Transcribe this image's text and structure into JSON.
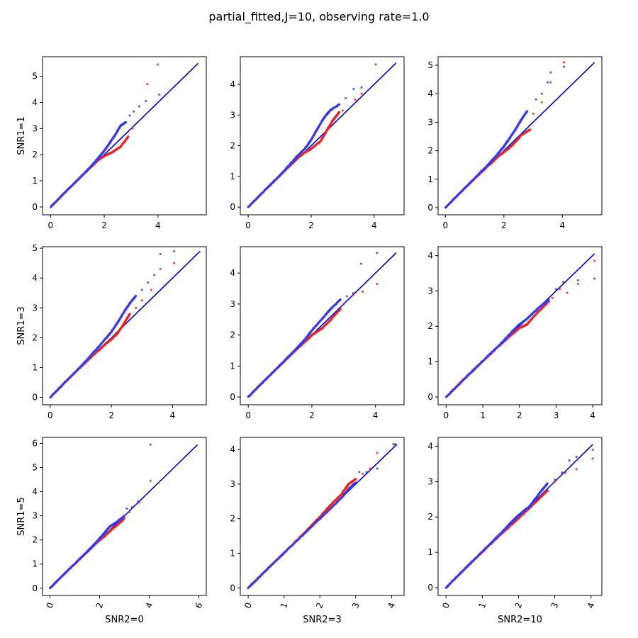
{
  "title": "partial_fitted,J=10, observing rate=1.0",
  "colors": {
    "reference": "#0000cc",
    "series_red": "#ee2222",
    "series_blue": "#3a3ae8"
  },
  "chart_data": {
    "type": "scatter",
    "title": "partial_fitted,J=10, observing rate=1.0",
    "grid": false,
    "legend": "none",
    "reference_line": "y = x",
    "row_labels": [
      "SNR1=1",
      "SNR1=3",
      "SNR1=5"
    ],
    "col_labels": [
      "SNR2=0",
      "SNR2=3",
      "SNR2=10"
    ],
    "series_names": [],
    "panels": [
      {
        "row": 0,
        "col": 0,
        "ylabel": "SNR1=1",
        "xlabel": "",
        "xlim": [
          -0.3,
          5.8
        ],
        "ylim": [
          -0.3,
          5.75
        ],
        "xticks": [
          0,
          2,
          4
        ],
        "yticks": [
          0,
          1,
          2,
          3,
          4,
          5
        ],
        "xtick_rotation": 0,
        "line_max": 5.5,
        "red_curve": [
          [
            0,
            0
          ],
          [
            0.5,
            0.52
          ],
          [
            1,
            1.02
          ],
          [
            1.5,
            1.52
          ],
          [
            1.8,
            1.82
          ],
          [
            2.0,
            1.95
          ],
          [
            2.3,
            2.1
          ],
          [
            2.6,
            2.3
          ],
          [
            2.9,
            2.7
          ]
        ],
        "blue_curve": [
          [
            0,
            0
          ],
          [
            0.5,
            0.52
          ],
          [
            1,
            1.03
          ],
          [
            1.5,
            1.55
          ],
          [
            1.8,
            1.9
          ],
          [
            2.0,
            2.15
          ],
          [
            2.2,
            2.45
          ],
          [
            2.4,
            2.75
          ],
          [
            2.6,
            3.1
          ],
          [
            2.8,
            3.25
          ]
        ],
        "red_tail": [
          [
            3.05,
            3.0
          ],
          [
            3.6,
            4.7
          ],
          [
            4.0,
            5.45
          ]
        ],
        "blue_tail": [
          [
            2.95,
            3.5
          ],
          [
            3.1,
            3.65
          ],
          [
            3.3,
            3.85
          ],
          [
            3.55,
            4.05
          ],
          [
            4.05,
            4.3
          ]
        ]
      },
      {
        "row": 0,
        "col": 1,
        "ylabel": "",
        "xlabel": "",
        "xlim": [
          -0.25,
          4.95
        ],
        "ylim": [
          -0.25,
          4.9
        ],
        "xticks": [
          0,
          2,
          4
        ],
        "yticks": [
          0,
          1,
          2,
          3,
          4
        ],
        "xtick_rotation": 0,
        "line_max": 4.7,
        "red_curve": [
          [
            0,
            0
          ],
          [
            0.5,
            0.52
          ],
          [
            1,
            1.02
          ],
          [
            1.5,
            1.55
          ],
          [
            1.8,
            1.78
          ],
          [
            2.0,
            1.9
          ],
          [
            2.3,
            2.15
          ],
          [
            2.5,
            2.5
          ],
          [
            2.7,
            2.85
          ],
          [
            2.9,
            3.1
          ]
        ],
        "blue_curve": [
          [
            0,
            0
          ],
          [
            0.5,
            0.52
          ],
          [
            1,
            1.03
          ],
          [
            1.5,
            1.6
          ],
          [
            1.8,
            1.9
          ],
          [
            2.0,
            2.2
          ],
          [
            2.2,
            2.55
          ],
          [
            2.4,
            2.9
          ],
          [
            2.6,
            3.15
          ],
          [
            2.9,
            3.35
          ]
        ],
        "red_tail": [
          [
            3.0,
            3.15
          ],
          [
            3.4,
            3.5
          ],
          [
            3.6,
            3.7
          ]
        ],
        "blue_tail": [
          [
            3.1,
            3.55
          ],
          [
            3.35,
            3.85
          ],
          [
            3.6,
            3.9
          ],
          [
            4.05,
            4.65
          ]
        ]
      },
      {
        "row": 0,
        "col": 2,
        "ylabel": "",
        "xlabel": "",
        "xlim": [
          -0.25,
          5.35
        ],
        "ylim": [
          -0.25,
          5.3
        ],
        "xticks": [
          0,
          2,
          4
        ],
        "yticks": [
          0,
          1,
          2,
          3,
          4,
          5
        ],
        "xtick_rotation": 0,
        "line_max": 5.1,
        "red_curve": [
          [
            0,
            0
          ],
          [
            0.5,
            0.52
          ],
          [
            1,
            1.02
          ],
          [
            1.5,
            1.5
          ],
          [
            1.8,
            1.8
          ],
          [
            2.0,
            1.95
          ],
          [
            2.3,
            2.2
          ],
          [
            2.6,
            2.55
          ],
          [
            2.9,
            2.75
          ]
        ],
        "blue_curve": [
          [
            0,
            0
          ],
          [
            0.5,
            0.52
          ],
          [
            1,
            1.04
          ],
          [
            1.5,
            1.55
          ],
          [
            1.8,
            1.9
          ],
          [
            2.0,
            2.15
          ],
          [
            2.2,
            2.45
          ],
          [
            2.4,
            2.75
          ],
          [
            2.6,
            3.1
          ],
          [
            2.8,
            3.4
          ]
        ],
        "red_tail": [
          [
            3.0,
            3.3
          ],
          [
            3.3,
            3.7
          ],
          [
            3.6,
            4.4
          ],
          [
            4.05,
            5.1
          ]
        ],
        "blue_tail": [
          [
            3.1,
            3.8
          ],
          [
            3.3,
            4.0
          ],
          [
            3.5,
            4.4
          ],
          [
            3.6,
            4.75
          ],
          [
            4.05,
            4.95
          ]
        ]
      },
      {
        "row": 1,
        "col": 0,
        "ylabel": "SNR1=3",
        "xlabel": "",
        "xlim": [
          -0.25,
          5.1
        ],
        "ylim": [
          -0.25,
          5.05
        ],
        "xticks": [
          0,
          2,
          4
        ],
        "yticks": [
          0,
          1,
          2,
          3,
          4,
          5
        ],
        "xtick_rotation": 0,
        "line_max": 4.9,
        "red_curve": [
          [
            0,
            0
          ],
          [
            0.5,
            0.52
          ],
          [
            1,
            1.02
          ],
          [
            1.5,
            1.5
          ],
          [
            1.8,
            1.78
          ],
          [
            2.0,
            1.95
          ],
          [
            2.2,
            2.15
          ],
          [
            2.4,
            2.45
          ],
          [
            2.6,
            2.8
          ]
        ],
        "blue_curve": [
          [
            0,
            0
          ],
          [
            0.5,
            0.52
          ],
          [
            1,
            1.04
          ],
          [
            1.5,
            1.6
          ],
          [
            1.8,
            1.95
          ],
          [
            2.0,
            2.2
          ],
          [
            2.2,
            2.5
          ],
          [
            2.4,
            2.85
          ],
          [
            2.6,
            3.15
          ],
          [
            2.8,
            3.4
          ]
        ],
        "red_tail": [
          [
            2.8,
            3.0
          ],
          [
            3.0,
            3.25
          ],
          [
            3.3,
            3.6
          ],
          [
            3.6,
            4.3
          ],
          [
            4.05,
            4.5
          ]
        ],
        "blue_tail": [
          [
            3.0,
            3.6
          ],
          [
            3.2,
            3.85
          ],
          [
            3.4,
            4.1
          ],
          [
            3.6,
            4.8
          ],
          [
            4.05,
            4.9
          ]
        ]
      },
      {
        "row": 1,
        "col": 1,
        "ylabel": "",
        "xlabel": "",
        "xlim": [
          -0.25,
          4.9
        ],
        "ylim": [
          -0.25,
          4.85
        ],
        "xticks": [
          0,
          2,
          4
        ],
        "yticks": [
          0,
          1,
          2,
          3,
          4
        ],
        "xtick_rotation": 0,
        "line_max": 4.65,
        "red_curve": [
          [
            0,
            0
          ],
          [
            0.5,
            0.52
          ],
          [
            1,
            1.02
          ],
          [
            1.5,
            1.52
          ],
          [
            1.8,
            1.8
          ],
          [
            2.0,
            2.0
          ],
          [
            2.3,
            2.2
          ],
          [
            2.6,
            2.5
          ],
          [
            2.9,
            2.85
          ]
        ],
        "blue_curve": [
          [
            0,
            0
          ],
          [
            0.5,
            0.52
          ],
          [
            1,
            1.03
          ],
          [
            1.5,
            1.55
          ],
          [
            1.8,
            1.88
          ],
          [
            2.0,
            2.15
          ],
          [
            2.3,
            2.5
          ],
          [
            2.6,
            2.85
          ],
          [
            2.9,
            3.15
          ]
        ],
        "red_tail": [
          [
            3.0,
            3.0
          ],
          [
            3.3,
            3.35
          ],
          [
            3.6,
            3.4
          ],
          [
            4.05,
            3.65
          ]
        ],
        "blue_tail": [
          [
            3.1,
            3.25
          ],
          [
            3.3,
            3.3
          ],
          [
            3.55,
            4.3
          ],
          [
            4.05,
            4.65
          ]
        ]
      },
      {
        "row": 1,
        "col": 2,
        "ylabel": "",
        "xlabel": "",
        "xlim": [
          -0.22,
          4.25
        ],
        "ylim": [
          -0.22,
          4.25
        ],
        "xticks": [
          0,
          1,
          2,
          3,
          4
        ],
        "yticks": [
          0,
          1,
          2,
          3,
          4
        ],
        "xtick_rotation": 0,
        "line_max": 4.05,
        "red_curve": [
          [
            0,
            0
          ],
          [
            0.5,
            0.51
          ],
          [
            1,
            1.01
          ],
          [
            1.5,
            1.5
          ],
          [
            1.8,
            1.78
          ],
          [
            2.0,
            1.95
          ],
          [
            2.2,
            2.05
          ],
          [
            2.5,
            2.4
          ],
          [
            2.8,
            2.7
          ]
        ],
        "blue_curve": [
          [
            0,
            0
          ],
          [
            0.5,
            0.52
          ],
          [
            1,
            1.02
          ],
          [
            1.5,
            1.52
          ],
          [
            1.8,
            1.85
          ],
          [
            2.0,
            2.05
          ],
          [
            2.2,
            2.2
          ],
          [
            2.5,
            2.5
          ],
          [
            2.8,
            2.75
          ]
        ],
        "red_tail": [
          [
            2.9,
            2.8
          ],
          [
            3.1,
            3.05
          ],
          [
            3.3,
            2.95
          ],
          [
            3.6,
            3.2
          ],
          [
            4.05,
            3.85
          ]
        ],
        "blue_tail": [
          [
            3.0,
            3.05
          ],
          [
            3.2,
            3.25
          ],
          [
            3.6,
            3.3
          ],
          [
            4.05,
            3.35
          ]
        ]
      },
      {
        "row": 2,
        "col": 0,
        "ylabel": "SNR1=5",
        "xlabel": "SNR2=0",
        "xlim": [
          -0.3,
          6.3
        ],
        "ylim": [
          -0.3,
          6.25
        ],
        "xticks": [
          0,
          2,
          4,
          6
        ],
        "yticks": [
          0,
          1,
          2,
          3,
          4,
          5,
          6
        ],
        "xtick_rotation": -70,
        "line_max": 5.95,
        "red_curve": [
          [
            0,
            0
          ],
          [
            0.5,
            0.51
          ],
          [
            1,
            1.01
          ],
          [
            1.5,
            1.5
          ],
          [
            1.9,
            1.9
          ],
          [
            2.2,
            2.15
          ],
          [
            2.5,
            2.45
          ],
          [
            2.8,
            2.7
          ],
          [
            3.0,
            2.9
          ]
        ],
        "blue_curve": [
          [
            0,
            0
          ],
          [
            0.5,
            0.52
          ],
          [
            1,
            1.02
          ],
          [
            1.5,
            1.52
          ],
          [
            1.9,
            1.95
          ],
          [
            2.2,
            2.3
          ],
          [
            2.4,
            2.55
          ],
          [
            2.7,
            2.75
          ],
          [
            3.0,
            3.0
          ]
        ],
        "red_tail": [
          [
            3.2,
            3.15
          ],
          [
            3.6,
            3.55
          ],
          [
            4.05,
            4.45
          ]
        ],
        "blue_tail": [
          [
            3.1,
            3.3
          ],
          [
            3.3,
            3.35
          ],
          [
            3.55,
            3.6
          ],
          [
            4.05,
            5.95
          ]
        ]
      },
      {
        "row": 2,
        "col": 1,
        "ylabel": "",
        "xlabel": "SNR2=3",
        "xlim": [
          -0.22,
          4.35
        ],
        "ylim": [
          -0.22,
          4.35
        ],
        "xticks": [
          0,
          1,
          2,
          3,
          4
        ],
        "yticks": [
          0,
          1,
          2,
          3,
          4
        ],
        "xtick_rotation": -70,
        "line_max": 4.15,
        "red_curve": [
          [
            0,
            0
          ],
          [
            0.5,
            0.51
          ],
          [
            1,
            1.01
          ],
          [
            1.5,
            1.52
          ],
          [
            2.0,
            2.05
          ],
          [
            2.3,
            2.4
          ],
          [
            2.6,
            2.7
          ],
          [
            2.8,
            3.0
          ],
          [
            3.0,
            3.15
          ]
        ],
        "blue_curve": [
          [
            0,
            0
          ],
          [
            0.5,
            0.51
          ],
          [
            1,
            1.01
          ],
          [
            1.5,
            1.5
          ],
          [
            2.0,
            2.0
          ],
          [
            2.3,
            2.3
          ],
          [
            2.6,
            2.6
          ],
          [
            2.8,
            2.85
          ],
          [
            3.0,
            3.05
          ]
        ],
        "red_tail": [
          [
            3.2,
            3.3
          ],
          [
            3.4,
            3.45
          ],
          [
            3.6,
            3.9
          ],
          [
            4.05,
            4.15
          ]
        ],
        "blue_tail": [
          [
            3.1,
            3.35
          ],
          [
            3.3,
            3.35
          ],
          [
            3.6,
            3.45
          ],
          [
            4.1,
            4.15
          ]
        ]
      },
      {
        "row": 2,
        "col": 2,
        "ylabel": "",
        "xlabel": "SNR2=10",
        "xlim": [
          -0.22,
          4.3
        ],
        "ylim": [
          -0.22,
          4.25
        ],
        "xticks": [
          0,
          1,
          2,
          3,
          4
        ],
        "yticks": [
          0,
          1,
          2,
          3,
          4
        ],
        "xtick_rotation": -70,
        "line_max": 4.05,
        "red_curve": [
          [
            0,
            0
          ],
          [
            0.5,
            0.51
          ],
          [
            1,
            1.01
          ],
          [
            1.5,
            1.5
          ],
          [
            1.8,
            1.78
          ],
          [
            2.0,
            1.97
          ],
          [
            2.3,
            2.25
          ],
          [
            2.6,
            2.55
          ],
          [
            2.8,
            2.75
          ]
        ],
        "blue_curve": [
          [
            0,
            0
          ],
          [
            0.5,
            0.52
          ],
          [
            1,
            1.02
          ],
          [
            1.5,
            1.53
          ],
          [
            1.8,
            1.85
          ],
          [
            2.0,
            2.05
          ],
          [
            2.3,
            2.3
          ],
          [
            2.6,
            2.7
          ],
          [
            2.8,
            2.95
          ]
        ],
        "red_tail": [
          [
            3.0,
            3.0
          ],
          [
            3.3,
            3.25
          ],
          [
            3.6,
            3.35
          ],
          [
            4.05,
            3.65
          ]
        ],
        "blue_tail": [
          [
            3.0,
            3.05
          ],
          [
            3.2,
            3.25
          ],
          [
            3.4,
            3.6
          ],
          [
            3.6,
            3.7
          ],
          [
            4.05,
            3.9
          ]
        ]
      }
    ]
  }
}
